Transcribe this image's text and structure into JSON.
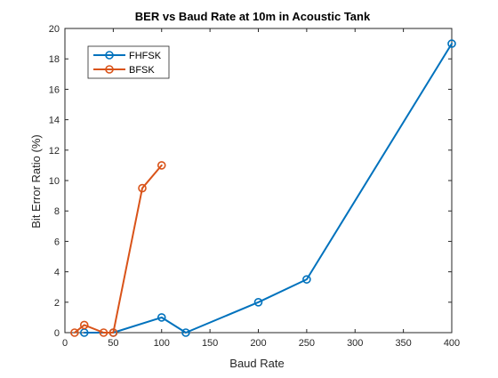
{
  "chart_data": {
    "type": "line",
    "title": "BER vs Baud Rate at 10m in Acoustic Tank",
    "xlabel": "Baud Rate",
    "ylabel": "Bit Error Ratio (%)",
    "xlim": [
      0,
      400
    ],
    "ylim": [
      0,
      20
    ],
    "xticks": [
      0,
      50,
      100,
      150,
      200,
      250,
      300,
      350,
      400
    ],
    "yticks": [
      0,
      2,
      4,
      6,
      8,
      10,
      12,
      14,
      16,
      18,
      20
    ],
    "grid": false,
    "legend_location": "top-left",
    "series": [
      {
        "name": "FHFSK",
        "color": "#0072BD",
        "marker": "circle",
        "x": [
          20,
          50,
          100,
          125,
          200,
          250,
          400
        ],
        "y": [
          0,
          0,
          1,
          0,
          2,
          3.5,
          19
        ]
      },
      {
        "name": "BFSK",
        "color": "#D95319",
        "marker": "circle",
        "x": [
          10,
          20,
          40,
          50,
          80,
          100
        ],
        "y": [
          0,
          0.5,
          0,
          0,
          9.5,
          11
        ]
      }
    ]
  }
}
